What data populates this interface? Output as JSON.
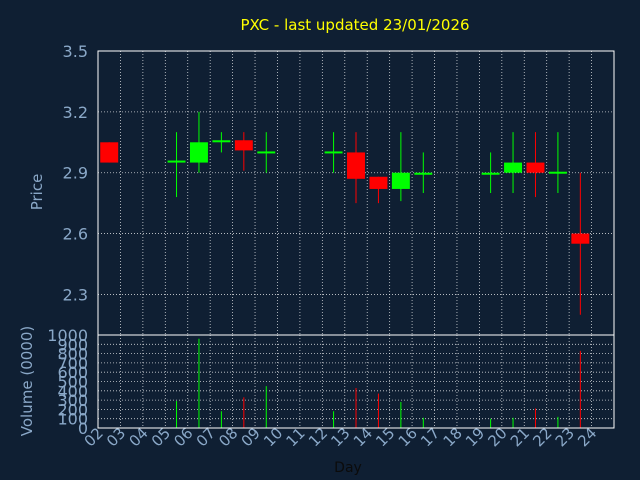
{
  "colors": {
    "background": "#0f1f33",
    "title": "#ffff00",
    "axis_text": "#8aa8c8",
    "grid": "#ffffff",
    "up": "#00ff00",
    "down": "#ff0000"
  },
  "chart_data": {
    "type": "candlestick",
    "title": "PXC - last updated 23/01/2026",
    "xlabel": "Day",
    "price_panel": {
      "ylabel": "Price",
      "ylim": [
        2.1,
        3.5
      ],
      "yticks": [
        "3.5",
        "3.2",
        "2.9",
        "2.6",
        "2.3"
      ],
      "ytick_values": [
        3.5,
        3.2,
        2.9,
        2.6,
        2.3
      ],
      "grid": true
    },
    "volume_panel": {
      "ylabel": "Volume (0000)",
      "ylim": [
        0,
        1000
      ],
      "yticks": [
        "1000",
        "900",
        "800",
        "700",
        "600",
        "500",
        "400",
        "300",
        "200",
        "100",
        "0"
      ],
      "ytick_values": [
        1000,
        900,
        800,
        700,
        600,
        500,
        400,
        300,
        200,
        100,
        0
      ],
      "grid": true
    },
    "days": [
      "02",
      "03",
      "04",
      "05",
      "06",
      "07",
      "08",
      "09",
      "10",
      "11",
      "12",
      "13",
      "14",
      "15",
      "16",
      "17",
      "18",
      "19",
      "20",
      "21",
      "22",
      "23",
      "24"
    ],
    "candles": [
      {
        "day": "02",
        "open": 3.05,
        "high": 3.05,
        "low": 2.95,
        "close": 2.95,
        "volume": 0
      },
      {
        "day": "05",
        "open": 2.95,
        "high": 3.1,
        "low": 2.78,
        "close": 2.96,
        "volume": 290
      },
      {
        "day": "06",
        "open": 2.95,
        "high": 3.2,
        "low": 2.9,
        "close": 3.05,
        "volume": 960
      },
      {
        "day": "07",
        "open": 3.05,
        "high": 3.1,
        "low": 3.0,
        "close": 3.06,
        "volume": 180
      },
      {
        "day": "08",
        "open": 3.06,
        "high": 3.1,
        "low": 2.91,
        "close": 3.01,
        "volume": 330
      },
      {
        "day": "09",
        "open": 3.0,
        "high": 3.1,
        "low": 2.9,
        "close": 3.0,
        "volume": 450
      },
      {
        "day": "12",
        "open": 3.0,
        "high": 3.1,
        "low": 2.9,
        "close": 3.0,
        "volume": 180
      },
      {
        "day": "13",
        "open": 3.0,
        "high": 3.1,
        "low": 2.75,
        "close": 2.87,
        "volume": 430
      },
      {
        "day": "14",
        "open": 2.88,
        "high": 2.88,
        "low": 2.75,
        "close": 2.82,
        "volume": 370
      },
      {
        "day": "15",
        "open": 2.82,
        "high": 3.1,
        "low": 2.76,
        "close": 2.9,
        "volume": 280
      },
      {
        "day": "16",
        "open": 2.89,
        "high": 3.0,
        "low": 2.8,
        "close": 2.9,
        "volume": 110
      },
      {
        "day": "19",
        "open": 2.89,
        "high": 3.0,
        "low": 2.8,
        "close": 2.9,
        "volume": 100
      },
      {
        "day": "20",
        "open": 2.9,
        "high": 3.1,
        "low": 2.8,
        "close": 2.95,
        "volume": 110
      },
      {
        "day": "21",
        "open": 2.95,
        "high": 3.1,
        "low": 2.78,
        "close": 2.9,
        "volume": 210
      },
      {
        "day": "22",
        "open": 2.9,
        "high": 3.1,
        "low": 2.8,
        "close": 2.9,
        "volume": 120
      },
      {
        "day": "23",
        "open": 2.6,
        "high": 2.9,
        "low": 2.2,
        "close": 2.55,
        "volume": 830
      }
    ]
  }
}
